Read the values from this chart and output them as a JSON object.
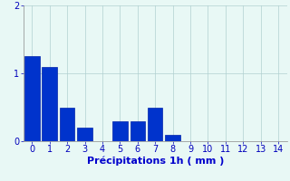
{
  "categories": [
    0,
    1,
    2,
    3,
    4,
    5,
    6,
    7,
    8,
    9,
    10,
    11,
    12,
    13,
    14
  ],
  "values": [
    1.25,
    1.1,
    0.5,
    0.2,
    0.0,
    0.3,
    0.3,
    0.5,
    0.1,
    0.0,
    0.0,
    0.0,
    0.0,
    0.0,
    0.0
  ],
  "bar_color": "#0033cc",
  "bar_edge_color": "#0022aa",
  "background_color": "#e8f8f5",
  "xlabel": "Précipitations 1h ( mm )",
  "xlabel_color": "#0000cc",
  "xlabel_fontsize": 8,
  "tick_color": "#0000bb",
  "tick_fontsize": 7,
  "ylim": [
    0,
    2
  ],
  "yticks": [
    0,
    1,
    2
  ],
  "grid_color": "#b0d0d0",
  "axis_color": "#888888",
  "bar_width": 0.85
}
